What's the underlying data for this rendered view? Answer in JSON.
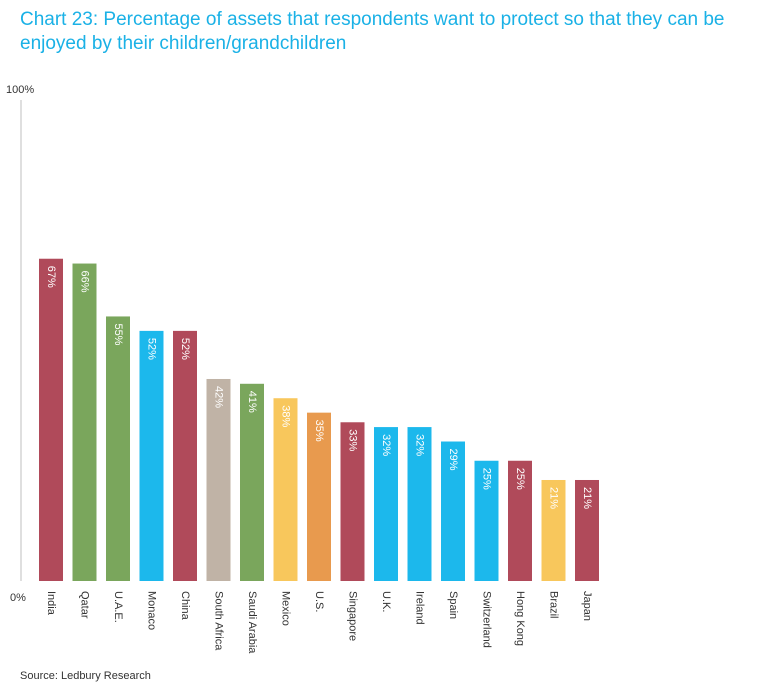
{
  "chart_data": {
    "type": "bar",
    "title": "Chart 23: Percentage of assets that respondents want to protect so that they can be enjoyed by their children/grandchildren",
    "categories": [
      "India",
      "Qatar",
      "U.A.E.",
      "Monaco",
      "China",
      "South Africa",
      "Saudi Arabia",
      "Mexico",
      "U.S.",
      "Singapore",
      "U.K.",
      "Ireland",
      "Spain",
      "Switzerland",
      "Hong Kong",
      "Brazil",
      "Japan"
    ],
    "values": [
      67,
      66,
      55,
      52,
      52,
      42,
      41,
      38,
      35,
      33,
      32,
      32,
      29,
      25,
      25,
      21,
      21
    ],
    "data_labels": [
      "67%",
      "66%",
      "55%",
      "52%",
      "52%",
      "42%",
      "41%",
      "38%",
      "35%",
      "33%",
      "32%",
      "32%",
      "29%",
      "25%",
      "25%",
      "21%",
      "21%"
    ],
    "colors": [
      "#b04a5a",
      "#7aa65c",
      "#7aa65c",
      "#1cb8ec",
      "#b04a5a",
      "#c0b3a6",
      "#7aa65c",
      "#f8c75c",
      "#e89a4e",
      "#b04a5a",
      "#1cb8ec",
      "#1cb8ec",
      "#1cb8ec",
      "#1cb8ec",
      "#b04a5a",
      "#f8c75c",
      "#b04a5a"
    ],
    "ylim": [
      0,
      100
    ],
    "ytick_labels": [
      "0%",
      "100%"
    ],
    "xlabel": "",
    "ylabel": "",
    "grid": false,
    "legend": "none",
    "source": "Source: Ledbury Research"
  }
}
